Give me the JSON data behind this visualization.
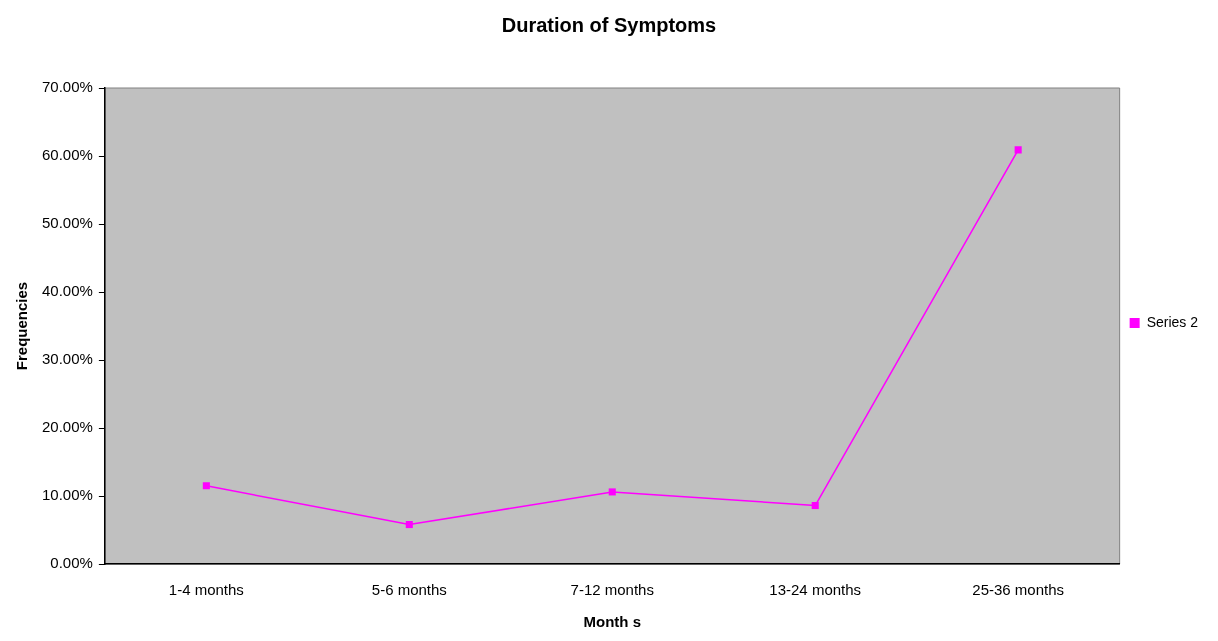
{
  "chart_data": {
    "type": "line",
    "title": "Duration of Symptoms",
    "xlabel": "Month s",
    "ylabel": "Frequencies",
    "categories": [
      "1-4 months",
      "5-6 months",
      "7-12 months",
      "13-24 months",
      "25-36 months"
    ],
    "series": [
      {
        "name": "Series 2",
        "color": "#ff00ff",
        "values": [
          11.5,
          5.8,
          10.6,
          8.6,
          60.9
        ]
      }
    ],
    "ylim": [
      0,
      70
    ],
    "yticks": [
      {
        "value": 0,
        "label": "0.00%"
      },
      {
        "value": 10,
        "label": "10.00%"
      },
      {
        "value": 20,
        "label": "20.00%"
      },
      {
        "value": 30,
        "label": "30.00%"
      },
      {
        "value": 40,
        "label": "40.00%"
      },
      {
        "value": 50,
        "label": "50.00%"
      },
      {
        "value": 60,
        "label": "60.00%"
      },
      {
        "value": 70,
        "label": "70.00%"
      }
    ],
    "grid": false,
    "legend": "right",
    "marker": "square",
    "line_style": "solid"
  }
}
